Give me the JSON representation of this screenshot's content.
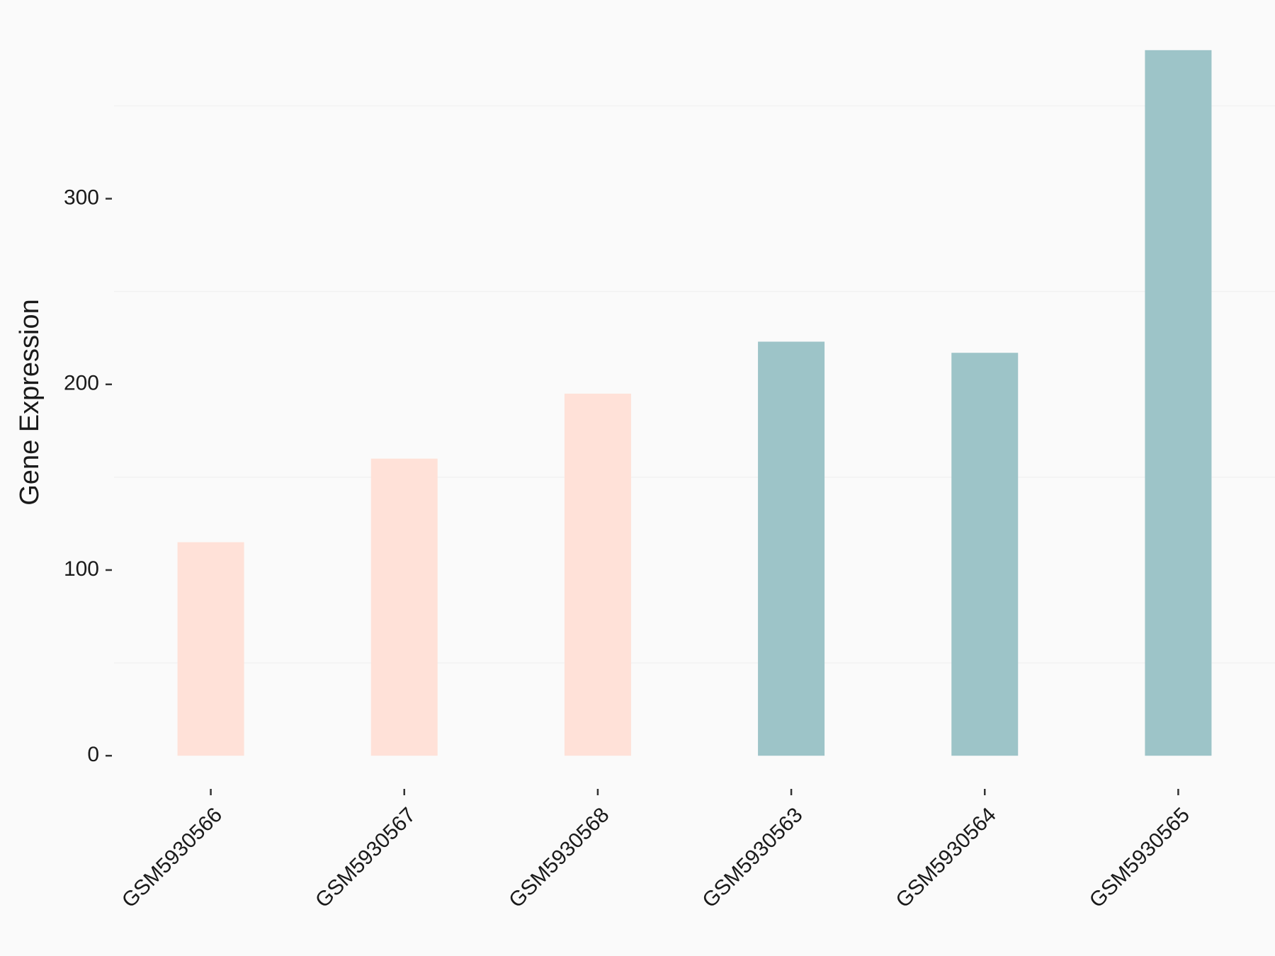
{
  "chart_data": {
    "type": "bar",
    "y_label": "Gene Expression",
    "categories": [
      "GSM5930566",
      "GSM5930567",
      "GSM5930568",
      "GSM5930563",
      "GSM5930564",
      "GSM5930565"
    ],
    "values": [
      115,
      160,
      195,
      223,
      217,
      380
    ],
    "colors": [
      "#ffe1d8",
      "#ffe1d8",
      "#ffe1d8",
      "#9dc4c8",
      "#9dc4c8",
      "#9dc4c8"
    ],
    "ylim": [
      -19,
      399
    ],
    "yticks": [
      0,
      100,
      200,
      300
    ],
    "minor_grid": [
      50,
      150,
      250,
      350
    ]
  }
}
